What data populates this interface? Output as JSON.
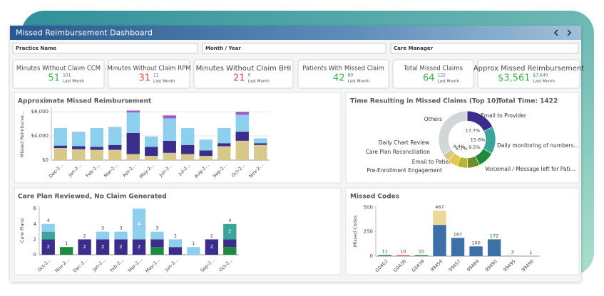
{
  "header": {
    "title": "Missed Reimbursement Dashboard"
  },
  "filters": [
    "Practice Name",
    "Month / Year",
    "Care Manager"
  ],
  "kpis": [
    {
      "label": "Minutes Without Claim CCM",
      "value": 51,
      "previous": 101,
      "previous_label": "Last Month",
      "color": "#3cb44b"
    },
    {
      "label": "Minutes Without Claim RPM",
      "value": 31,
      "previous": 21,
      "previous_label": "Last Month",
      "color": "#e04545"
    },
    {
      "label": "Minutes Without Claim BHI",
      "value": 21,
      "previous": 0,
      "previous_label": "Last Month",
      "color": "#e04545"
    },
    {
      "label": "Patients With Missed Claim",
      "value": 42,
      "previous": 80,
      "previous_label": "Last Month",
      "color": "#3cb44b"
    },
    {
      "label": "Total Missed Claims",
      "value": 64,
      "previous": 122,
      "previous_label": "Last Month",
      "color": "#3cb44b"
    },
    {
      "label": "Approx Missed Reimbursement",
      "value": "$3,561",
      "previous": "$7,640",
      "previous_label": "Last Month",
      "color": "#3cb44b"
    }
  ],
  "chart_data": [
    {
      "type": "bar",
      "title": "Approximate Missed Reimbursement",
      "y_label": "Missed Reimburse...",
      "categories": [
        "Dec-2...",
        "Jan-2...",
        "Feb-2...",
        "Mar-2...",
        "Apr-2...",
        "May-2...",
        "Jun-2...",
        "Jul-2...",
        "Aug-2...",
        "Sep-2...",
        "Oct-2...",
        "Nov-2..."
      ],
      "series": [
        {
          "color": "#d8c98a",
          "values": [
            2000,
            1800,
            1700,
            1700,
            1000,
            700,
            1200,
            1000,
            700,
            2300,
            3200,
            2500
          ]
        },
        {
          "color": "#3a2d8c",
          "values": [
            400,
            500,
            500,
            800,
            3500,
            1500,
            2000,
            1500,
            900,
            500,
            1500,
            300
          ]
        },
        {
          "color": "#8dd0ee",
          "values": [
            2900,
            2400,
            3100,
            3000,
            3400,
            1700,
            3700,
            2800,
            1800,
            2500,
            2800,
            800
          ]
        },
        {
          "color": "#a35bc4",
          "values": [
            0,
            0,
            0,
            0,
            300,
            0,
            500,
            0,
            0,
            0,
            500,
            0
          ]
        }
      ],
      "ylim": [
        0,
        8600
      ],
      "yticks": [
        {
          "value": 0,
          "label": "$0"
        },
        {
          "value": 4000,
          "label": "$4,000"
        },
        {
          "value": 8000,
          "label": "$8,000"
        }
      ],
      "grid": true
    },
    {
      "type": "donut",
      "title": "Time Resulting in Missed Claims (Top 10)",
      "subtitle": "Total Time: 1422",
      "categories": [
        "Email to Provider",
        "Daily monitoring of numbers...",
        "Voicemail / Message left for Pati...",
        "Pre-Enrollment Engagement",
        "Email to Patient",
        "Care Plan Reconciliation",
        "Daily Chart Review",
        "Others"
      ],
      "values": [
        17.7,
        15.6,
        9.5,
        7,
        6,
        5.7,
        4.4,
        34.1
      ],
      "value_labels": [
        "17.7%",
        "15.6%",
        "9.5%",
        null,
        null,
        "5.7%",
        "4.4%",
        null
      ],
      "colors": [
        "#3a2d8c",
        "#3aa59a",
        "#1f8a3e",
        "#6f8f2a",
        "#b9b53a",
        "#e2c84a",
        "#d8c98a",
        "#d3d6d9"
      ]
    },
    {
      "type": "bar",
      "title": "Care Plan Reviewed, No Claim Generated",
      "y_label": "Care Plans",
      "categories": [
        "Oct-2...",
        "Nov-2...",
        "Dec-2...",
        "Jan-2...",
        "Feb-2...",
        "Mar-2...",
        "May-2...",
        "Jun-2...",
        null,
        "Sep-2...",
        "Oct-2..."
      ],
      "series": [
        {
          "color": "#1f8a3e",
          "values": [
            0,
            1,
            0,
            0,
            0,
            0,
            1,
            0,
            0,
            0,
            1
          ]
        },
        {
          "color": "#3a2d8c",
          "values": [
            2,
            0,
            2,
            2,
            2,
            2,
            1,
            1,
            0,
            2,
            1
          ]
        },
        {
          "color": "#3aa59a",
          "values": [
            1,
            0,
            0,
            0,
            0,
            0,
            0,
            0,
            0,
            0,
            2
          ]
        },
        {
          "color": "#8dd0ee",
          "values": [
            1,
            0,
            0,
            1,
            1,
            4,
            1,
            1,
            1,
            0,
            0
          ]
        }
      ],
      "totals": [
        4,
        1,
        2,
        3,
        3,
        null,
        3,
        2,
        1,
        2,
        4
      ],
      "ylim": [
        0,
        6.3
      ],
      "yticks": [
        0,
        2,
        4,
        6
      ],
      "grid": false
    },
    {
      "type": "bar",
      "title": "Missed Codes",
      "y_label": "Missed Codes",
      "categories": [
        "G0402",
        "G0438",
        "G0439",
        "99454",
        "99457",
        "99484",
        "99490",
        "99495",
        "99496"
      ],
      "series": [
        {
          "color": "#3d6fa8",
          "values": [
            0,
            0,
            0,
            320,
            187,
            100,
            160,
            3,
            1
          ]
        },
        {
          "color": "#ead99a",
          "values": [
            0,
            0,
            0,
            147,
            0,
            0,
            0,
            0,
            0
          ]
        },
        {
          "color": "#1f8a3e",
          "values": [
            11,
            0,
            10,
            0,
            0,
            0,
            12,
            0,
            0
          ]
        },
        {
          "color": "#d9534f",
          "values": [
            0,
            10,
            0,
            0,
            0,
            0,
            0,
            0,
            0
          ]
        }
      ],
      "totals": [
        11,
        10,
        10,
        467,
        187,
        100,
        172,
        3,
        1
      ],
      "ylim": [
        0,
        510
      ],
      "yticks": [
        0,
        250,
        500
      ],
      "grid": false
    }
  ]
}
